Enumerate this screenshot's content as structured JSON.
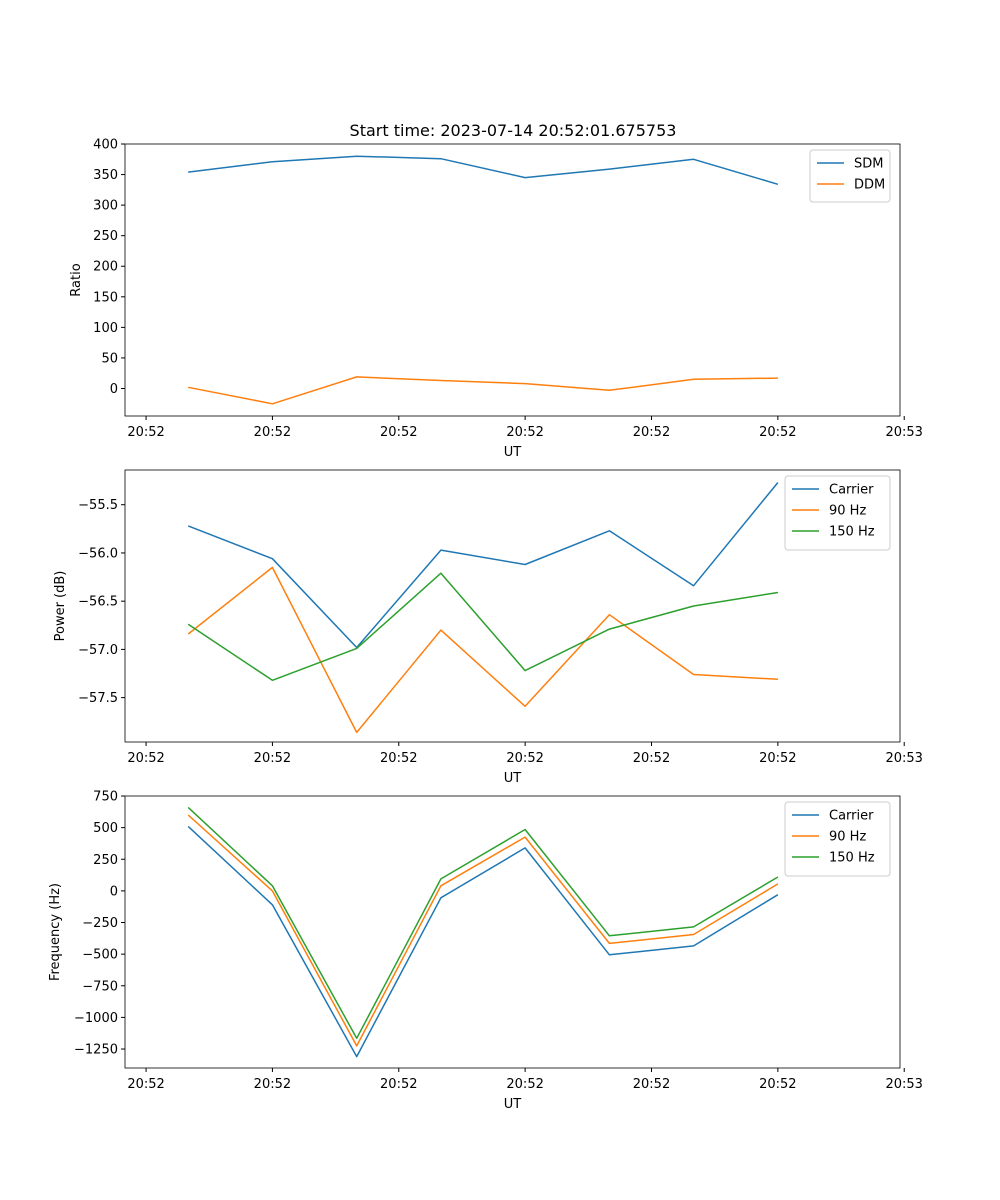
{
  "title": "Start time: 2023-07-14 20:52:01.675753",
  "chart_data": [
    {
      "type": "line",
      "xlabel": "UT",
      "ylabel": "Ratio",
      "x": [
        0,
        1,
        2,
        3,
        4,
        5,
        6,
        7
      ],
      "xlim": [
        -0.75,
        8.45
      ],
      "x_ticks": [
        -0.5,
        1,
        2.5,
        4,
        5.5,
        7,
        8.5
      ],
      "x_tick_labels": [
        "20:52",
        "20:52",
        "20:52",
        "20:52",
        "20:52",
        "20:52",
        "20:53"
      ],
      "ylim": [
        -45,
        400
      ],
      "y_ticks": [
        0,
        50,
        100,
        150,
        200,
        250,
        300,
        350,
        400
      ],
      "y_tick_labels": [
        "0",
        "50",
        "100",
        "150",
        "200",
        "250",
        "300",
        "350",
        "400"
      ],
      "legend_position": "top-right",
      "series": [
        {
          "name": "SDM",
          "color": "#1f77b4",
          "values": [
            354,
            371,
            380,
            376,
            345,
            359,
            375,
            334
          ]
        },
        {
          "name": "DDM",
          "color": "#ff7f0e",
          "values": [
            2,
            -25,
            19,
            13,
            8,
            -3,
            15,
            17
          ]
        }
      ]
    },
    {
      "type": "line",
      "xlabel": "UT",
      "ylabel": "Power (dB)",
      "x": [
        0,
        1,
        2,
        3,
        4,
        5,
        6,
        7
      ],
      "xlim": [
        -0.75,
        8.45
      ],
      "x_ticks": [
        -0.5,
        1,
        2.5,
        4,
        5.5,
        7,
        8.5
      ],
      "x_tick_labels": [
        "20:52",
        "20:52",
        "20:52",
        "20:52",
        "20:52",
        "20:52",
        "20:53"
      ],
      "ylim": [
        -57.96,
        -55.14
      ],
      "y_ticks": [
        -55.5,
        -56.0,
        -56.5,
        -57.0,
        -57.5
      ],
      "y_tick_labels": [
        "−55.5",
        "−56.0",
        "−56.5",
        "−57.0",
        "−57.5"
      ],
      "legend_position": "top-right",
      "series": [
        {
          "name": "Carrier",
          "color": "#1f77b4",
          "values": [
            -55.72,
            -56.06,
            -56.98,
            -55.97,
            -56.12,
            -55.77,
            -56.34,
            -55.27
          ]
        },
        {
          "name": "90 Hz",
          "color": "#ff7f0e",
          "values": [
            -56.84,
            -56.15,
            -57.86,
            -56.8,
            -57.59,
            -56.64,
            -57.26,
            -57.31
          ]
        },
        {
          "name": "150 Hz",
          "color": "#2ca02c",
          "values": [
            -56.74,
            -57.32,
            -56.99,
            -56.21,
            -57.22,
            -56.79,
            -56.55,
            -56.41
          ]
        }
      ]
    },
    {
      "type": "line",
      "xlabel": "UT",
      "ylabel": "Frequency (Hz)",
      "x": [
        0,
        1,
        2,
        3,
        4,
        5,
        6,
        7
      ],
      "xlim": [
        -0.75,
        8.45
      ],
      "x_ticks": [
        -0.5,
        1,
        2.5,
        4,
        5.5,
        7,
        8.5
      ],
      "x_tick_labels": [
        "20:52",
        "20:52",
        "20:52",
        "20:52",
        "20:52",
        "20:52",
        "20:53"
      ],
      "ylim": [
        -1400,
        750
      ],
      "y_ticks": [
        750,
        500,
        250,
        0,
        -250,
        -500,
        -750,
        -1000,
        -1250
      ],
      "y_tick_labels": [
        "750",
        "500",
        "250",
        "0",
        "−250",
        "−500",
        "−750",
        "−1000",
        "−1250"
      ],
      "legend_position": "top-right",
      "series": [
        {
          "name": "Carrier",
          "color": "#1f77b4",
          "values": [
            510,
            -110,
            -1310,
            -55,
            340,
            -505,
            -435,
            -30
          ]
        },
        {
          "name": "90 Hz",
          "color": "#ff7f0e",
          "values": [
            600,
            0,
            -1225,
            40,
            425,
            -415,
            -345,
            55
          ]
        },
        {
          "name": "150 Hz",
          "color": "#2ca02c",
          "values": [
            660,
            40,
            -1165,
            95,
            485,
            -355,
            -285,
            110
          ]
        }
      ]
    }
  ]
}
